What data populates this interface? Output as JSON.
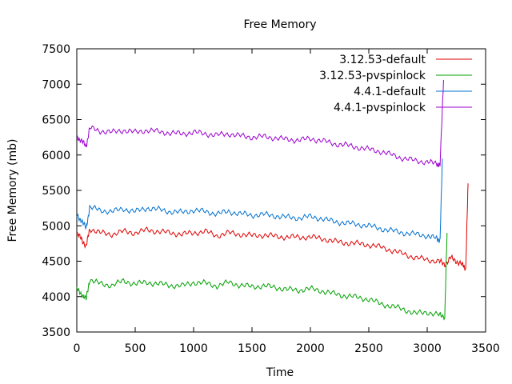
{
  "chart_data": {
    "type": "line",
    "title": "Free Memory",
    "xlabel": "Time",
    "ylabel": "Free Memory (mb)",
    "xlim": [
      0,
      3500
    ],
    "ylim": [
      3500,
      7500
    ],
    "x_ticks": [
      0,
      500,
      1000,
      1500,
      2000,
      2500,
      3000,
      3500
    ],
    "y_ticks": [
      3500,
      4000,
      4500,
      5000,
      5500,
      6000,
      6500,
      7000,
      7500
    ],
    "x_tick_labels": [
      "0",
      "500",
      "1000",
      "1500",
      "2000",
      "2500",
      "3000",
      "3500"
    ],
    "y_tick_labels": [
      "3500",
      "4000",
      "4500",
      "5000",
      "5500",
      "6000",
      "6500",
      "7000",
      "7500"
    ],
    "grid": false,
    "legend_position": "top-right",
    "series": [
      {
        "name": "3.12.53-default",
        "color": "#e00000",
        "x": [
          0,
          40,
          80,
          110,
          200,
          300,
          400,
          500,
          600,
          700,
          800,
          900,
          1000,
          1100,
          1200,
          1300,
          1400,
          1500,
          1600,
          1700,
          1800,
          1900,
          2000,
          2100,
          2200,
          2300,
          2400,
          2500,
          2600,
          2700,
          2800,
          2900,
          3000,
          3100,
          3150,
          3200,
          3250,
          3300,
          3330,
          3350
        ],
        "y": [
          4880,
          4820,
          4700,
          4960,
          4900,
          4880,
          4920,
          4900,
          4940,
          4920,
          4900,
          4880,
          4900,
          4920,
          4860,
          4900,
          4880,
          4860,
          4870,
          4850,
          4840,
          4840,
          4840,
          4820,
          4780,
          4760,
          4750,
          4730,
          4700,
          4650,
          4600,
          4550,
          4520,
          4500,
          4450,
          4550,
          4500,
          4450,
          4400,
          5600
        ]
      },
      {
        "name": "3.12.53-pvspinlock",
        "color": "#00a000",
        "x": [
          0,
          40,
          80,
          110,
          200,
          300,
          400,
          500,
          600,
          700,
          800,
          900,
          1000,
          1100,
          1200,
          1300,
          1400,
          1500,
          1600,
          1700,
          1800,
          1900,
          2000,
          2100,
          2200,
          2300,
          2400,
          2500,
          2600,
          2700,
          2800,
          2900,
          3000,
          3100,
          3150,
          3170
        ],
        "y": [
          4100,
          4040,
          3960,
          4240,
          4180,
          4160,
          4220,
          4180,
          4200,
          4180,
          4160,
          4150,
          4200,
          4190,
          4150,
          4200,
          4160,
          4140,
          4150,
          4130,
          4100,
          4090,
          4110,
          4080,
          4040,
          4010,
          3990,
          3960,
          3900,
          3860,
          3820,
          3760,
          3780,
          3740,
          3720,
          4900
        ]
      },
      {
        "name": "4.4.1-default",
        "color": "#0070d0",
        "x": [
          0,
          40,
          80,
          110,
          200,
          300,
          400,
          500,
          600,
          700,
          800,
          900,
          1000,
          1100,
          1200,
          1300,
          1400,
          1500,
          1600,
          1700,
          1800,
          1900,
          2000,
          2100,
          2200,
          2300,
          2400,
          2500,
          2600,
          2700,
          2800,
          2900,
          3000,
          3080,
          3110,
          3130
        ],
        "y": [
          5140,
          5080,
          4960,
          5260,
          5220,
          5200,
          5240,
          5200,
          5250,
          5230,
          5200,
          5190,
          5220,
          5200,
          5170,
          5200,
          5170,
          5150,
          5160,
          5140,
          5120,
          5110,
          5130,
          5100,
          5060,
          5040,
          5020,
          5000,
          4960,
          4930,
          4900,
          4880,
          4860,
          4820,
          4800,
          5950
        ]
      },
      {
        "name": "4.4.1-pvspinlock",
        "color": "#9b00d0",
        "x": [
          0,
          40,
          80,
          110,
          200,
          300,
          400,
          500,
          600,
          700,
          800,
          900,
          1000,
          1100,
          1200,
          1300,
          1400,
          1500,
          1600,
          1700,
          1800,
          1900,
          2000,
          2100,
          2200,
          2300,
          2400,
          2500,
          2600,
          2700,
          2800,
          2900,
          3000,
          3080,
          3110,
          3140
        ],
        "y": [
          6260,
          6200,
          6120,
          6380,
          6340,
          6320,
          6350,
          6320,
          6350,
          6330,
          6310,
          6300,
          6320,
          6300,
          6280,
          6300,
          6270,
          6250,
          6260,
          6240,
          6220,
          6210,
          6230,
          6200,
          6160,
          6140,
          6110,
          6080,
          6050,
          6000,
          5950,
          5920,
          5900,
          5880,
          5860,
          7060
        ]
      }
    ]
  }
}
